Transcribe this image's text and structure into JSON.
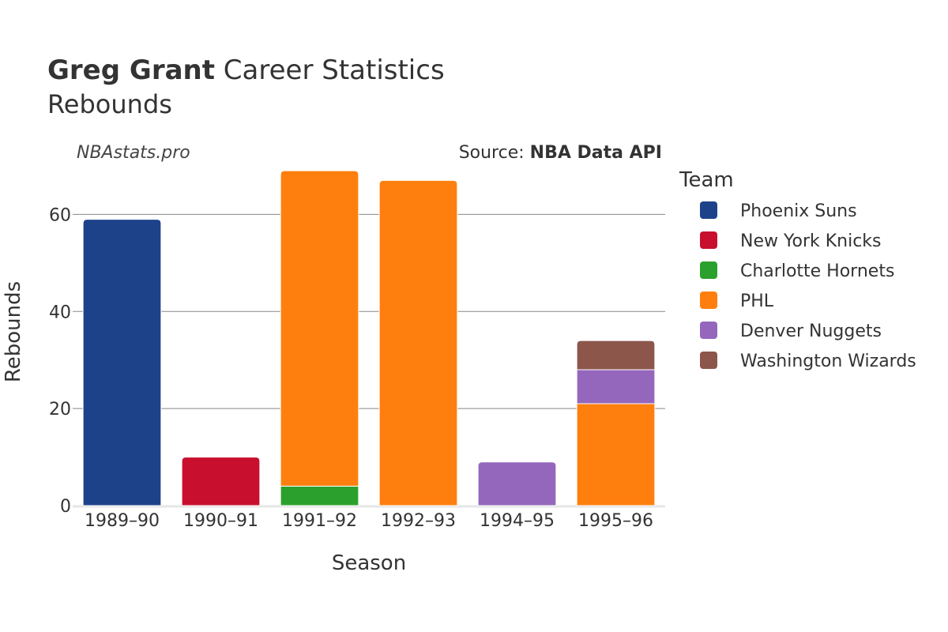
{
  "title": {
    "bold": "Greg Grant",
    "rest": " Career Statistics"
  },
  "subtitle": "Rebounds",
  "watermark": "NBAstats.pro",
  "source": {
    "prefix": "Source: ",
    "bold": "NBA Data API"
  },
  "chart_data": {
    "type": "bar",
    "stacked": true,
    "title": "Greg Grant Career Statistics",
    "subtitle": "Rebounds",
    "xlabel": "Season",
    "ylabel": "Rebounds",
    "ylim": [
      0,
      70
    ],
    "yticks": [
      0,
      20,
      40,
      60
    ],
    "grid": true,
    "legend_title": "Team",
    "legend_position": "right",
    "categories": [
      "1989–90",
      "1990–91",
      "1991–92",
      "1992–93",
      "1994–95",
      "1995–96"
    ],
    "series": [
      {
        "name": "Phoenix Suns",
        "color": "#1d428a",
        "values": [
          59,
          0,
          0,
          0,
          0,
          0
        ]
      },
      {
        "name": "New York Knicks",
        "color": "#c8102e",
        "values": [
          0,
          10,
          0,
          0,
          0,
          0
        ]
      },
      {
        "name": "Charlotte Hornets",
        "color": "#2ca02c",
        "values": [
          0,
          0,
          4,
          0,
          0,
          0
        ]
      },
      {
        "name": "PHL",
        "color": "#ff7f0e",
        "values": [
          0,
          0,
          65,
          67,
          0,
          21
        ]
      },
      {
        "name": "Denver Nuggets",
        "color": "#9467bd",
        "values": [
          0,
          0,
          0,
          0,
          9,
          7
        ]
      },
      {
        "name": "Washington Wizards",
        "color": "#8c564b",
        "values": [
          0,
          0,
          0,
          0,
          0,
          6
        ]
      }
    ]
  }
}
